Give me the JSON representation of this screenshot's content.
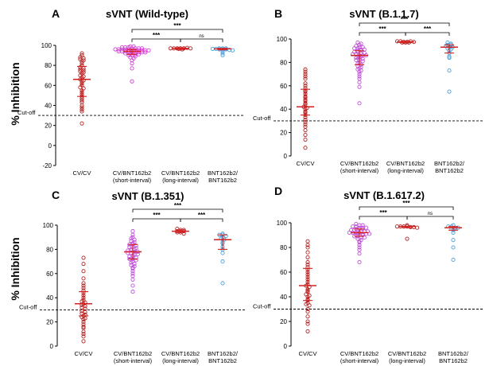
{
  "figure": {
    "ylabel": "% Inhibition",
    "cutoff_label": "Cut-off",
    "cutoff_value": 30
  },
  "chart_data": [
    {
      "type": "scatter",
      "panel": "A",
      "title": "sVNT (Wild-type)",
      "ylabel": "% Inhibition",
      "ylim": [
        -20,
        100
      ],
      "yticks": [
        -20,
        0,
        20,
        40,
        60,
        80,
        100
      ],
      "cutoff": 30,
      "categories": [
        {
          "label": [
            "CV/CV",
            ""
          ],
          "color": "#b22222",
          "median": 66,
          "q1": 49,
          "q3": 79,
          "values": [
            92,
            90,
            88,
            87,
            86,
            85,
            84,
            82,
            80,
            78,
            77,
            76,
            75,
            74,
            73,
            72,
            70,
            69,
            68,
            66,
            65,
            64,
            62,
            60,
            58,
            57,
            55,
            53,
            51,
            49,
            47,
            45,
            43,
            40,
            38,
            36,
            34,
            22
          ]
        },
        {
          "label": [
            "CV/BNT162b2",
            "(short-interval)"
          ],
          "color": "#d43ad4",
          "median": 94,
          "q1": 91,
          "q3": 96,
          "values": [
            99,
            99,
            98,
            98,
            98,
            97,
            97,
            97,
            97,
            96,
            96,
            96,
            96,
            96,
            95,
            95,
            95,
            95,
            95,
            95,
            94,
            94,
            94,
            94,
            94,
            93,
            93,
            93,
            93,
            92,
            92,
            92,
            91,
            91,
            90,
            90,
            89,
            88,
            87,
            85,
            82,
            77,
            64
          ]
        },
        {
          "label": [
            "CV/BNT162b2",
            "(long-interval)"
          ],
          "color": "#b22222",
          "median": 97,
          "q1": 96,
          "q3": 97.5,
          "values": [
            97,
            97,
            97,
            97,
            97,
            96.5,
            97.5,
            96,
            97
          ]
        },
        {
          "label": [
            "BNT162b2/",
            "BNT162b2"
          ],
          "color": "#4a9fd8",
          "median": 96.5,
          "q1": 95.5,
          "q3": 97,
          "values": [
            97,
            97,
            97,
            96.5,
            96.5,
            96,
            96,
            96,
            95.5,
            95,
            94,
            92,
            90
          ]
        }
      ],
      "comparisons": [
        {
          "from": 1,
          "to": 2,
          "label": "***"
        },
        {
          "from": 1,
          "to": 3,
          "label": "***"
        },
        {
          "from": 2,
          "to": 3,
          "label": "ns"
        }
      ]
    },
    {
      "type": "scatter",
      "panel": "B",
      "title": "sVNT (B.1.1.7)",
      "ylabel": "% Inhibition",
      "ylim": [
        0,
        100
      ],
      "yticks": [
        0,
        20,
        40,
        60,
        80,
        100
      ],
      "cutoff": 30,
      "categories": [
        {
          "label": [
            "CV/CV",
            ""
          ],
          "color": "#b22222",
          "median": 42,
          "q1": 35,
          "q3": 57,
          "values": [
            74,
            72,
            70,
            68,
            66,
            62,
            60,
            58,
            56,
            55,
            53,
            51,
            50,
            48,
            47,
            45,
            44,
            42,
            41,
            40,
            38,
            37,
            35,
            33,
            31,
            29,
            27,
            25,
            22,
            18,
            14,
            7
          ]
        },
        {
          "label": [
            "CV/BNT162b2",
            "(short-interval)"
          ],
          "color": "#c050d8",
          "median": 86,
          "q1": 78,
          "q3": 90,
          "values": [
            97,
            96,
            95,
            94,
            93,
            93,
            92,
            92,
            91,
            91,
            90,
            90,
            89,
            89,
            88,
            88,
            87,
            87,
            86,
            86,
            86,
            85,
            85,
            84,
            84,
            83,
            82,
            82,
            81,
            80,
            79,
            78,
            77,
            76,
            75,
            74,
            73,
            72,
            70,
            68,
            66,
            63,
            59,
            45
          ]
        },
        {
          "label": [
            "CV/BNT162b2",
            "(long-interval)"
          ],
          "color": "#b22222",
          "median": 97.5,
          "q1": 97,
          "q3": 98,
          "values": [
            98,
            98,
            97.5,
            97.5,
            97,
            97,
            98,
            97.5,
            97
          ]
        },
        {
          "label": [
            "BNT162b2/",
            "BNT162b2"
          ],
          "color": "#4a9fd8",
          "median": 93,
          "q1": 88,
          "q3": 95,
          "values": [
            97,
            96,
            95,
            95,
            94,
            93,
            93,
            92,
            91,
            90,
            88,
            85,
            84,
            73,
            55
          ]
        }
      ],
      "comparisons": [
        {
          "from": 1,
          "to": 2,
          "label": "***"
        },
        {
          "from": 2,
          "to": 3,
          "label": "***"
        },
        {
          "from": 1,
          "to": 3,
          "label": "***"
        }
      ]
    },
    {
      "type": "scatter",
      "panel": "C",
      "title": "sVNT (B.1.351)",
      "ylabel": "% Inhibition",
      "ylim": [
        0,
        100
      ],
      "yticks": [
        0,
        20,
        40,
        60,
        80,
        100
      ],
      "cutoff": 30,
      "categories": [
        {
          "label": [
            "CV/CV",
            ""
          ],
          "color": "#b22222",
          "median": 35,
          "q1": 25,
          "q3": 45,
          "values": [
            73,
            68,
            62,
            56,
            52,
            50,
            48,
            46,
            44,
            42,
            40,
            38,
            37,
            36,
            35,
            34,
            33,
            32,
            31,
            29,
            28,
            27,
            26,
            25,
            24,
            23,
            22,
            20,
            18,
            16,
            15,
            12,
            10,
            8,
            4
          ]
        },
        {
          "label": [
            "CV/BNT162b2",
            "(short-interval)"
          ],
          "color": "#c050d8",
          "median": 78,
          "q1": 72,
          "q3": 84,
          "values": [
            95,
            92,
            90,
            89,
            88,
            87,
            86,
            85,
            84,
            84,
            83,
            82,
            82,
            81,
            80,
            80,
            79,
            79,
            78,
            78,
            77,
            77,
            76,
            76,
            75,
            74,
            74,
            73,
            72,
            72,
            71,
            70,
            69,
            68,
            67,
            66,
            65,
            64,
            62,
            60,
            58,
            55,
            50,
            45
          ]
        },
        {
          "label": [
            "CV/BNT162b2",
            "(long-interval)"
          ],
          "color": "#b22222",
          "median": 95,
          "q1": 94,
          "q3": 96,
          "values": [
            97,
            96,
            96,
            95,
            95,
            95,
            94,
            94,
            93
          ]
        },
        {
          "label": [
            "BNT162b2/",
            "BNT162b2"
          ],
          "color": "#4a9fd8",
          "median": 88,
          "q1": 80,
          "q3": 92,
          "values": [
            93,
            92,
            92,
            91,
            90,
            89,
            88,
            86,
            85,
            82,
            80,
            77,
            70,
            52
          ]
        }
      ],
      "comparisons": [
        {
          "from": 1,
          "to": 2,
          "label": "***"
        },
        {
          "from": 2,
          "to": 3,
          "label": "***"
        },
        {
          "from": 1,
          "to": 3,
          "label": "***"
        }
      ]
    },
    {
      "type": "scatter",
      "panel": "D",
      "title": "sVNT (B.1.617.2)",
      "ylabel": "% Inhibition",
      "ylim": [
        0,
        100
      ],
      "yticks": [
        0,
        20,
        40,
        60,
        80,
        100
      ],
      "cutoff": 30,
      "categories": [
        {
          "label": [
            "CV/CV",
            ""
          ],
          "color": "#b22222",
          "median": 49,
          "q1": 37,
          "q3": 63,
          "values": [
            85,
            82,
            80,
            76,
            72,
            68,
            66,
            64,
            62,
            60,
            58,
            56,
            54,
            52,
            50,
            49,
            48,
            46,
            45,
            44,
            42,
            41,
            40,
            38,
            37,
            35,
            34,
            33,
            30,
            28,
            24,
            20,
            18,
            12
          ]
        },
        {
          "label": [
            "CV/BNT162b2",
            "(short-interval)"
          ],
          "color": "#c050d8",
          "median": 92,
          "q1": 89,
          "q3": 95,
          "values": [
            99,
            98,
            98,
            97,
            97,
            96,
            96,
            96,
            95,
            95,
            95,
            94,
            94,
            94,
            93,
            93,
            93,
            92,
            92,
            92,
            92,
            91,
            91,
            91,
            90,
            90,
            90,
            89,
            89,
            88,
            88,
            87,
            86,
            85,
            84,
            82,
            80,
            78,
            75,
            68
          ]
        },
        {
          "label": [
            "CV/BNT162b2",
            "(long-interval)"
          ],
          "color": "#b22222",
          "median": 97,
          "q1": 96,
          "q3": 97,
          "values": [
            98,
            97,
            97,
            97,
            97,
            96.5,
            96.5,
            96,
            87
          ]
        },
        {
          "label": [
            "BNT162b2/",
            "BNT162b2"
          ],
          "color": "#4a9fd8",
          "median": 96,
          "q1": 94,
          "q3": 97,
          "values": [
            98,
            97,
            97,
            96,
            96,
            95,
            95,
            94,
            92,
            86,
            80,
            70
          ]
        }
      ],
      "comparisons": [
        {
          "from": 1,
          "to": 2,
          "label": "***"
        },
        {
          "from": 1,
          "to": 3,
          "label": "***"
        },
        {
          "from": 2,
          "to": 3,
          "label": "ns"
        }
      ]
    }
  ]
}
